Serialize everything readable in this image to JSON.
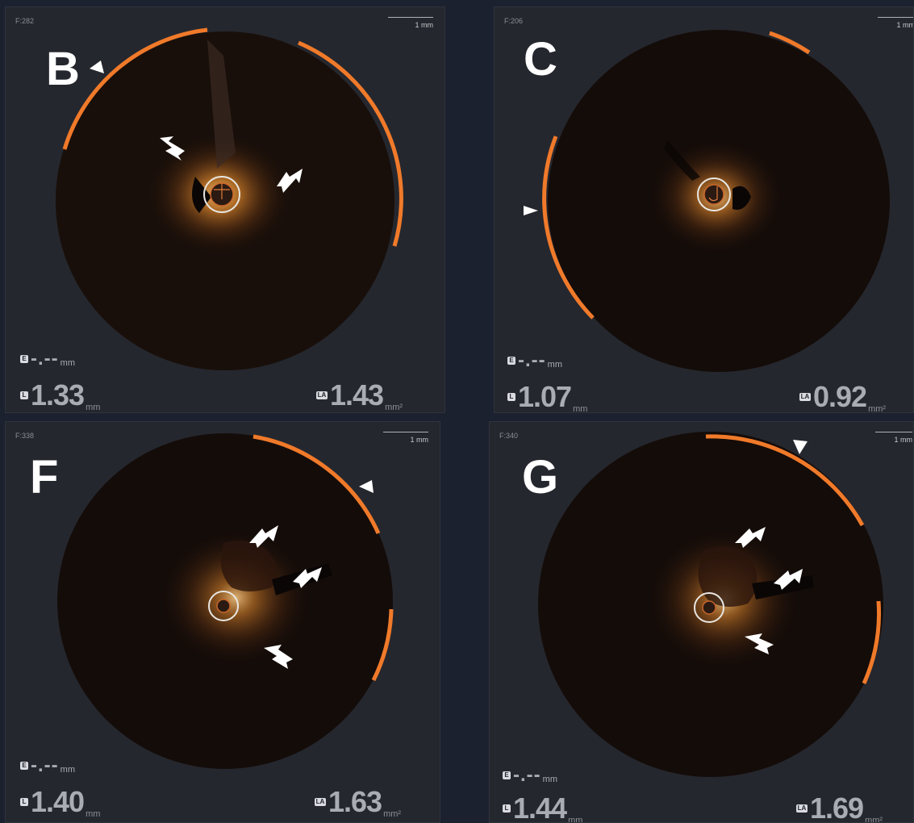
{
  "panels": {
    "b": {
      "letter": "B",
      "frame": "F:282",
      "scale": "1 mm",
      "thickness": "-.--",
      "thickness_unit": "mm",
      "lumen_d": "1.33",
      "lumen_d_unit": "mm",
      "lumen_area": "1.43",
      "lumen_area_unit": "mm²",
      "icon_e": "E",
      "icon_l": "L",
      "icon_la": "LA"
    },
    "c": {
      "letter": "C",
      "frame": "F:206",
      "scale": "1 mm",
      "thickness": "-.--",
      "thickness_unit": "mm",
      "lumen_d": "1.07",
      "lumen_d_unit": "mm",
      "lumen_area": "0.92",
      "lumen_area_unit": "mm²",
      "icon_e": "E",
      "icon_l": "L",
      "icon_la": "LA"
    },
    "f": {
      "letter": "F",
      "frame": "F:338",
      "scale": "1 mm",
      "thickness": "-.--",
      "thickness_unit": "mm",
      "lumen_d": "1.40",
      "lumen_d_unit": "mm",
      "lumen_area": "1.63",
      "lumen_area_unit": "mm²",
      "icon_e": "E",
      "icon_l": "L",
      "icon_la": "LA"
    },
    "g": {
      "letter": "G",
      "frame": "F:340",
      "scale": "1 mm",
      "thickness": "-.--",
      "thickness_unit": "mm",
      "lumen_d": "1.44",
      "lumen_d_unit": "mm",
      "lumen_area": "1.69",
      "lumen_area_unit": "mm²",
      "icon_e": "E",
      "icon_l": "L",
      "icon_la": "LA"
    }
  },
  "colors": {
    "arc": "#f07a2a",
    "tissue": "#e08a2e",
    "background": "#1c2130"
  }
}
